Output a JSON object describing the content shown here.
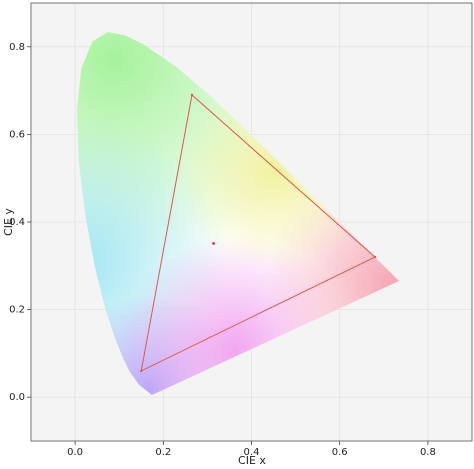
{
  "chart_data": {
    "type": "line",
    "xlabel": "CIE x",
    "ylabel": "CIE y",
    "xlim": [
      -0.1,
      0.9
    ],
    "ylim": [
      -0.1,
      0.9
    ],
    "xticks": [
      {
        "value": 0,
        "label": "0.0"
      },
      0.2,
      0.4,
      0.6,
      0.8
    ],
    "yticks": [
      {
        "value": 0,
        "label": "0.0"
      },
      0.2,
      0.4,
      0.6,
      0.8
    ],
    "grid": true,
    "locus": {
      "x": [
        0.1741,
        0.144,
        0.1241,
        0.1096,
        0.0913,
        0.0687,
        0.0454,
        0.0235,
        0.0082,
        0.0039,
        0.0139,
        0.0389,
        0.0743,
        0.1142,
        0.1547,
        0.2296,
        0.3016,
        0.3731,
        0.4441,
        0.5125,
        0.5752,
        0.627,
        0.6915,
        0.719,
        0.7347
      ],
      "y": [
        0.005,
        0.0297,
        0.0578,
        0.0868,
        0.1327,
        0.2007,
        0.295,
        0.4127,
        0.5384,
        0.6548,
        0.7502,
        0.812,
        0.8338,
        0.8262,
        0.8059,
        0.7543,
        0.6923,
        0.6245,
        0.5547,
        0.4866,
        0.4242,
        0.3725,
        0.3083,
        0.2809,
        0.2653
      ]
    },
    "series": [
      {
        "type": "line",
        "color": "#e0574c",
        "x": [
          0.68,
          0.265,
          0.15,
          0.68
        ],
        "y": [
          0.32,
          0.69,
          0.06,
          0.32
        ]
      },
      {
        "type": "scatter",
        "color": "#e03a3a",
        "x": [
          0.314
        ],
        "y": [
          0.351
        ]
      }
    ]
  }
}
